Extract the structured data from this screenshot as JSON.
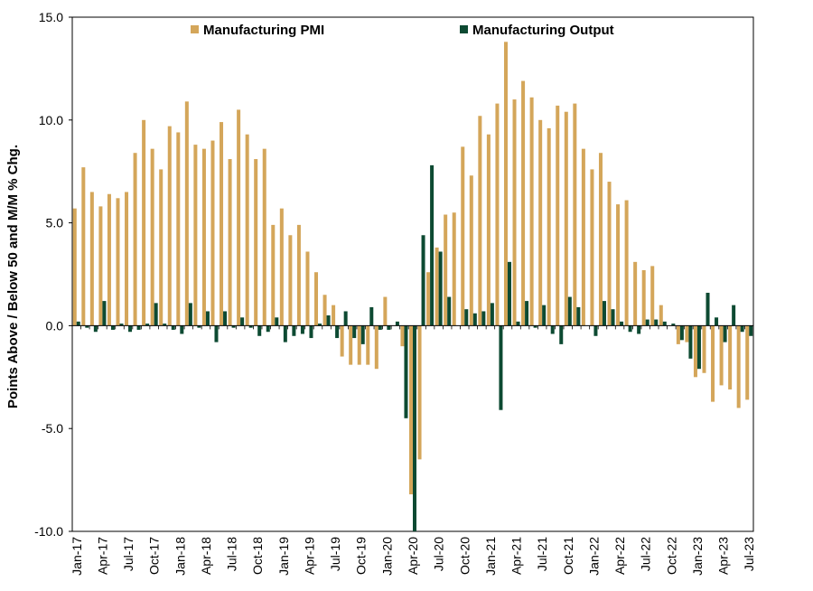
{
  "chart_data": {
    "type": "bar",
    "title": "",
    "xlabel": "",
    "ylabel": "Points Above / Below 50 and M/M % Chg.",
    "ylim": [
      -10,
      15
    ],
    "yticks": [
      "-10.0",
      "-5.0",
      "0.0",
      "5.0",
      "10.0",
      "15.0"
    ],
    "grid": false,
    "legend_position": "top-center",
    "colors": {
      "pmi": "#d4a65a",
      "output": "#0d4a32"
    },
    "categories": [
      "Jan-17",
      "Feb-17",
      "Mar-17",
      "Apr-17",
      "May-17",
      "Jun-17",
      "Jul-17",
      "Aug-17",
      "Sep-17",
      "Oct-17",
      "Nov-17",
      "Dec-17",
      "Jan-18",
      "Feb-18",
      "Mar-18",
      "Apr-18",
      "May-18",
      "Jun-18",
      "Jul-18",
      "Aug-18",
      "Sep-18",
      "Oct-18",
      "Nov-18",
      "Dec-18",
      "Jan-19",
      "Feb-19",
      "Mar-19",
      "Apr-19",
      "May-19",
      "Jun-19",
      "Jul-19",
      "Aug-19",
      "Sep-19",
      "Oct-19",
      "Nov-19",
      "Dec-19",
      "Jan-20",
      "Feb-20",
      "Mar-20",
      "Apr-20",
      "May-20",
      "Jun-20",
      "Jul-20",
      "Aug-20",
      "Sep-20",
      "Oct-20",
      "Nov-20",
      "Dec-20",
      "Jan-21",
      "Feb-21",
      "Mar-21",
      "Apr-21",
      "May-21",
      "Jun-21",
      "Jul-21",
      "Aug-21",
      "Sep-21",
      "Oct-21",
      "Nov-21",
      "Dec-21",
      "Jan-22",
      "Feb-22",
      "Mar-22",
      "Apr-22",
      "May-22",
      "Jun-22",
      "Jul-22",
      "Aug-22",
      "Sep-22",
      "Oct-22",
      "Nov-22",
      "Dec-22",
      "Jan-23",
      "Feb-23",
      "Mar-23",
      "Apr-23",
      "May-23",
      "Jun-23",
      "Jul-23"
    ],
    "x_tick_labels": [
      "Jan-17",
      "Apr-17",
      "Jul-17",
      "Oct-17",
      "Jan-18",
      "Apr-18",
      "Jul-18",
      "Oct-18",
      "Jan-19",
      "Apr-19",
      "Jul-19",
      "Oct-19",
      "Jan-20",
      "Apr-20",
      "Jul-20",
      "Oct-20",
      "Jan-21",
      "Apr-21",
      "Jul-21",
      "Oct-21",
      "Jan-22",
      "Apr-22",
      "Jul-22",
      "Oct-22",
      "Jan-23",
      "Apr-23",
      "Jul-23"
    ],
    "series": [
      {
        "name": "Manufacturing PMI",
        "values": [
          5.7,
          7.7,
          6.5,
          5.8,
          6.4,
          6.2,
          6.5,
          8.4,
          10.0,
          8.6,
          7.6,
          9.7,
          9.4,
          10.9,
          8.8,
          8.6,
          9.0,
          9.9,
          8.1,
          10.5,
          9.3,
          8.1,
          8.6,
          4.9,
          5.7,
          4.4,
          4.9,
          3.6,
          2.6,
          1.5,
          1.0,
          -1.5,
          -1.9,
          -1.9,
          -1.9,
          -2.1,
          1.4,
          0.0,
          -1.0,
          -8.2,
          -6.5,
          2.6,
          3.8,
          5.4,
          5.5,
          8.7,
          7.3,
          10.2,
          9.3,
          10.8,
          13.8,
          11.0,
          11.9,
          11.1,
          10.0,
          9.6,
          10.7,
          10.4,
          10.8,
          8.6,
          7.6,
          8.4,
          7.0,
          5.9,
          6.1,
          3.1,
          2.7,
          2.9,
          1.0,
          0.0,
          -0.9,
          -0.8,
          -2.5,
          -2.3,
          -3.7,
          -2.9,
          -3.1,
          -4.0,
          -3.6
        ]
      },
      {
        "name": "Manufacturing Output",
        "values": [
          0.2,
          -0.1,
          -0.3,
          1.2,
          -0.2,
          0.1,
          -0.3,
          -0.2,
          0.1,
          1.1,
          0.1,
          -0.2,
          -0.4,
          1.1,
          -0.1,
          0.7,
          -0.8,
          0.7,
          -0.1,
          0.4,
          -0.1,
          -0.5,
          -0.3,
          0.4,
          -0.8,
          -0.5,
          -0.4,
          -0.6,
          0.1,
          0.5,
          -0.6,
          0.7,
          -0.6,
          -0.9,
          0.9,
          -0.2,
          -0.2,
          0.2,
          -4.5,
          -10.0,
          4.4,
          7.8,
          3.6,
          1.4,
          0.0,
          0.8,
          0.6,
          0.7,
          1.1,
          -4.1,
          3.1,
          0.2,
          1.2,
          -0.1,
          1.0,
          -0.4,
          -0.9,
          1.4,
          0.9,
          0.0,
          -0.5,
          1.2,
          0.8,
          0.2,
          -0.3,
          -0.4,
          0.3,
          0.3,
          0.2,
          0.1,
          -0.7,
          -1.6,
          -2.1,
          1.6,
          0.4,
          -0.8,
          1.0,
          -0.3,
          -0.5
        ]
      }
    ]
  }
}
